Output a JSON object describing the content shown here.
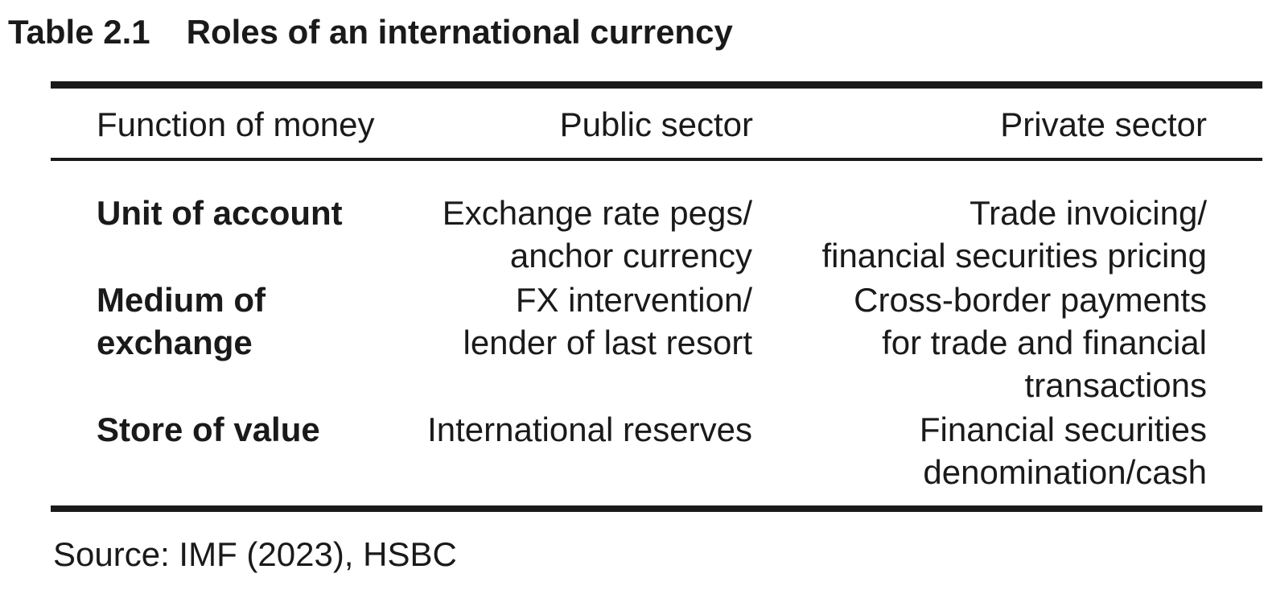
{
  "colors": {
    "background": "#ffffff",
    "text": "#1a1a1a",
    "rule": "#1a1a1a"
  },
  "title": {
    "number": "Table 2.1",
    "text": "Roles of an international currency"
  },
  "table": {
    "headers": [
      "Function of money",
      "Public sector",
      "Private sector"
    ],
    "rows": [
      {
        "function": "Unit of account",
        "public_sector": "Exchange rate pegs/\nanchor currency",
        "private_sector": "Trade invoicing/\nfinancial securities pricing"
      },
      {
        "function": "Medium of\nexchange",
        "public_sector": "FX intervention/\nlender of last resort",
        "private_sector": "Cross-border payments\nfor trade and financial\ntransactions"
      },
      {
        "function": "Store of value",
        "public_sector": "International reserves",
        "private_sector": "Financial securities\ndenomination/cash"
      }
    ]
  },
  "source": "Source: IMF (2023), HSBC"
}
